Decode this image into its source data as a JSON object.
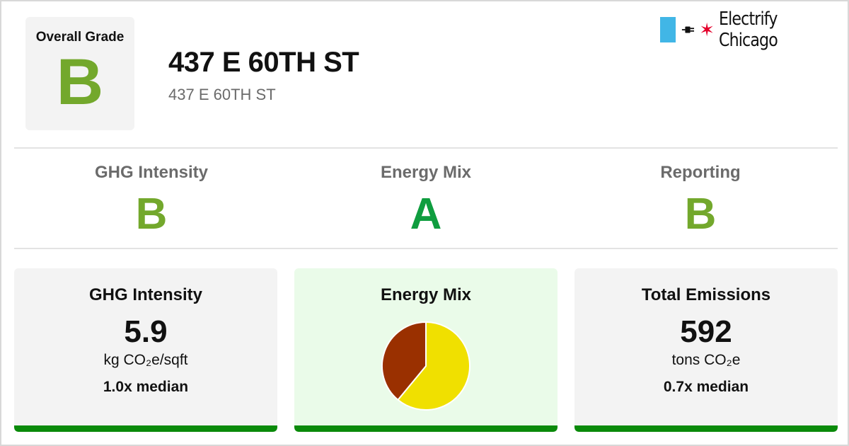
{
  "overall": {
    "label": "Overall Grade",
    "grade": "B"
  },
  "building": {
    "title": "437 E 60TH ST",
    "subtitle": "437 E 60TH ST"
  },
  "brand": {
    "name": "Electrify Chicago",
    "star": "✶"
  },
  "subgrades": [
    {
      "label": "GHG Intensity",
      "grade": "B"
    },
    {
      "label": "Energy Mix",
      "grade": "A"
    },
    {
      "label": "Reporting",
      "grade": "B"
    }
  ],
  "cards": {
    "ghg": {
      "title": "GHG Intensity",
      "value": "5.9",
      "unit": "kg CO₂e/sqft",
      "median": "1.0x median"
    },
    "mix": {
      "title": "Energy Mix"
    },
    "emissions": {
      "title": "Total Emissions",
      "value": "592",
      "unit": "tons CO₂e",
      "median": "0.7x median"
    }
  },
  "energy_mix": {
    "slices": [
      {
        "share": 0.61,
        "color": "#f0e000"
      },
      {
        "share": 0.39,
        "color": "#9a3000"
      }
    ]
  },
  "colors": {
    "grade_b": "#73a82c",
    "grade_a": "#0f9d3f",
    "card_bar": "#0a8a0a",
    "brand_flag": "#41b6e6",
    "brand_star": "#e4002b"
  }
}
